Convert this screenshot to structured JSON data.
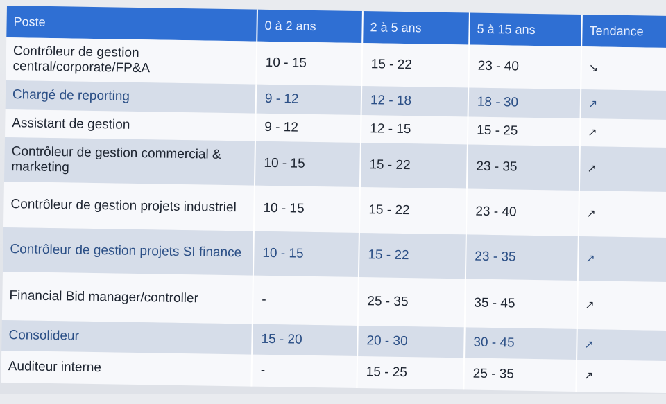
{
  "table": {
    "headers": {
      "poste": "Poste",
      "range_0_2": "0 à 2 ans",
      "range_2_5": "2 à 5 ans",
      "range_5_15": "5 à 15 ans",
      "tendance": "Tendance"
    },
    "rows": [
      {
        "poste": "Contrôleur de gestion central/corporate/FP&A",
        "a": "10 - 15",
        "b": "15 - 22",
        "c": "23 - 40",
        "trend": "↘"
      },
      {
        "poste": "Chargé de reporting",
        "a": "9 - 12",
        "b": "12 - 18",
        "c": "18 - 30",
        "trend": "↗"
      },
      {
        "poste": "Assistant de gestion",
        "a": "9 - 12",
        "b": "12 - 15",
        "c": "15 - 25",
        "trend": "↗"
      },
      {
        "poste": "Contrôleur de gestion commercial & marketing",
        "a": "10 - 15",
        "b": "15 - 22",
        "c": "23 - 35",
        "trend": "↗"
      },
      {
        "poste": "Contrôleur de gestion projets industriel",
        "a": "10 - 15",
        "b": "15 - 22",
        "c": "23 - 40",
        "trend": "↗"
      },
      {
        "poste": "Contrôleur de gestion projets SI finance",
        "a": "10 - 15",
        "b": "15 - 22",
        "c": "23 - 35",
        "trend": "↗"
      },
      {
        "poste": "Financial Bid manager/controller",
        "a": "-",
        "b": "25 - 35",
        "c": "35 - 45",
        "trend": "↗"
      },
      {
        "poste": "Consolideur",
        "a": "15 - 20",
        "b": "20 - 30",
        "c": "30 - 45",
        "trend": "↗"
      },
      {
        "poste": "Auditeur interne",
        "a": "-",
        "b": "15 - 25",
        "c": "25 - 35",
        "trend": "↗"
      }
    ]
  }
}
